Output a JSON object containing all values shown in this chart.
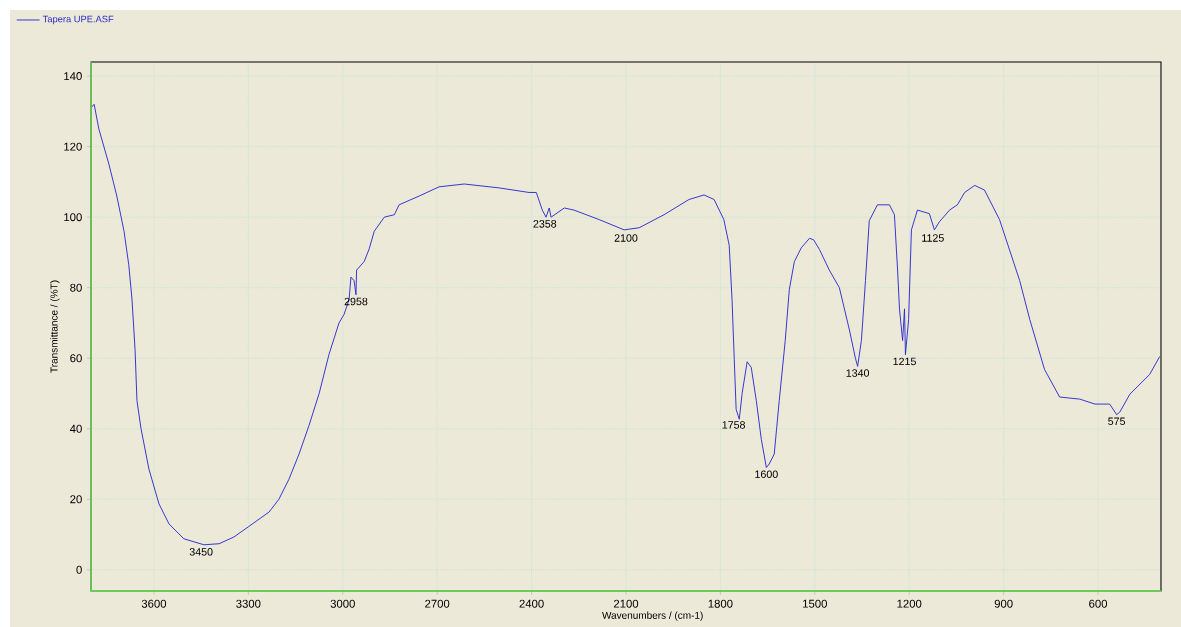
{
  "chart_data": {
    "type": "line",
    "xlabel": "Wavenumbers / (cm-1)",
    "ylabel": "Transmittance / (%T)",
    "xlim": [
      3800,
      400
    ],
    "ylim": [
      -6,
      144
    ],
    "xticks": [
      3600,
      3300,
      3000,
      2700,
      2400,
      2100,
      1800,
      1500,
      1200,
      900,
      600
    ],
    "yticks": [
      0,
      20,
      40,
      60,
      80,
      100,
      120,
      140
    ],
    "grid": true,
    "legend": "top left",
    "marker": "none",
    "line_style": "solid",
    "series": [
      {
        "name": "Tapera UPE.ASF",
        "color": "#2a2ad0",
        "x": [
          3800,
          3790,
          3775,
          3743,
          3718,
          3695,
          3680,
          3670,
          3660,
          3654,
          3641,
          3616,
          3584,
          3552,
          3505,
          3441,
          3393,
          3346,
          3300,
          3234,
          3203,
          3171,
          3139,
          3107,
          3075,
          3044,
          3012,
          2996,
          2980,
          2974,
          2964,
          2958,
          2956,
          2932,
          2916,
          2900,
          2868,
          2836,
          2821,
          2757,
          2694,
          2614,
          2503,
          2408,
          2385,
          2366,
          2354,
          2344,
          2338,
          2296,
          2265,
          2185,
          2106,
          2058,
          1979,
          1900,
          1852,
          1820,
          1789,
          1772,
          1763,
          1756,
          1750,
          1740,
          1731,
          1715,
          1702,
          1686,
          1670,
          1654,
          1645,
          1629,
          1613,
          1594,
          1581,
          1565,
          1543,
          1517,
          1504,
          1485,
          1454,
          1422,
          1390,
          1371,
          1364,
          1352,
          1339,
          1327,
          1301,
          1263,
          1247,
          1237,
          1231,
          1221,
          1215,
          1212,
          1202,
          1193,
          1174,
          1136,
          1120,
          1104,
          1072,
          1047,
          1024,
          992,
          961,
          913,
          849,
          817,
          770,
          722,
          658,
          610,
          563,
          541,
          531,
          499,
          436,
          404
        ],
        "values": [
          131,
          132,
          125,
          115,
          106,
          96,
          86.5,
          77,
          62.5,
          48,
          40,
          28.6,
          18.7,
          13,
          8.8,
          7.1,
          7.4,
          9.3,
          12.2,
          16.4,
          20,
          25.7,
          32.8,
          41,
          50,
          61,
          70,
          72.4,
          76.6,
          83,
          82,
          78,
          85,
          87.4,
          91,
          96,
          100,
          100.7,
          103.5,
          106,
          108.6,
          109.4,
          108.3,
          107,
          107,
          102,
          100,
          102.6,
          100,
          102.6,
          102,
          99.3,
          96.4,
          97,
          100.7,
          105,
          106.3,
          105,
          99.3,
          92,
          76.6,
          59.7,
          45.5,
          42.7,
          50,
          59,
          57.4,
          48,
          37,
          29,
          30,
          32.8,
          48,
          65,
          79.5,
          87.4,
          91.3,
          94,
          93.6,
          90.8,
          85,
          80,
          68,
          60,
          57.7,
          65,
          82,
          99,
          103.5,
          103.5,
          100.7,
          85,
          74,
          65,
          74,
          61,
          71,
          96.4,
          102,
          101,
          96.4,
          98.7,
          102,
          103.5,
          107,
          109,
          107.7,
          99.3,
          82,
          71,
          56.8,
          49,
          48.4,
          47,
          47,
          44,
          44.7,
          49.8,
          55.4,
          60.5
        ]
      }
    ],
    "annotations": [
      {
        "text": "3450",
        "x": 3450,
        "y": 7
      },
      {
        "text": "2958",
        "x": 2958,
        "y": 78
      },
      {
        "text": "2358",
        "x": 2358,
        "y": 100
      },
      {
        "text": "2100",
        "x": 2100,
        "y": 96
      },
      {
        "text": "1758",
        "x": 1758,
        "y": 43
      },
      {
        "text": "1600",
        "x": 1654,
        "y": 29
      },
      {
        "text": "1340",
        "x": 1364,
        "y": 57.7
      },
      {
        "text": "1215",
        "x": 1215,
        "y": 61
      },
      {
        "text": "1125",
        "x": 1125,
        "y": 96
      },
      {
        "text": "575",
        "x": 541,
        "y": 44
      }
    ]
  }
}
